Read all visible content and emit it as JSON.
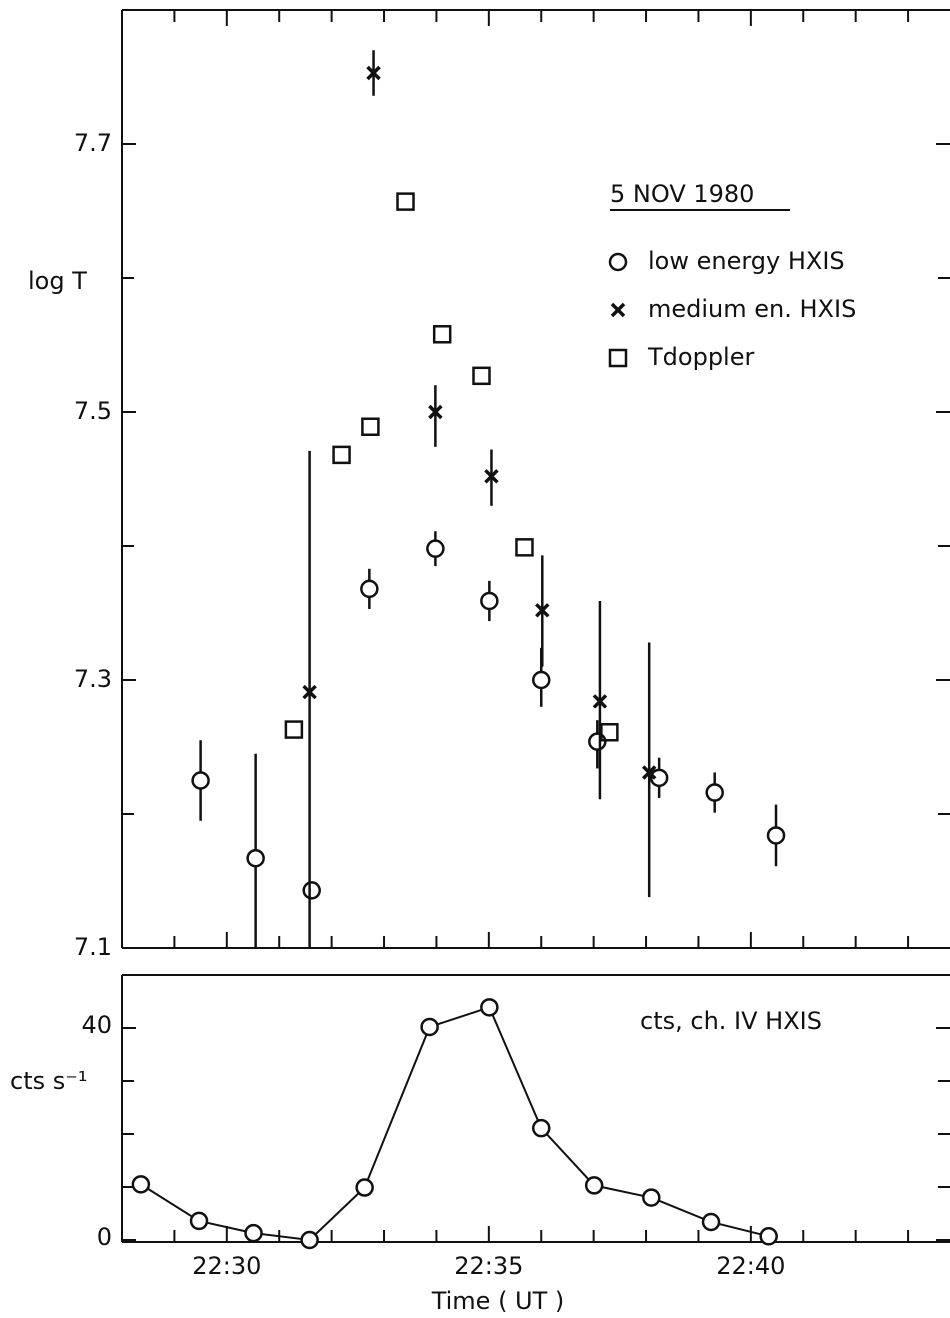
{
  "chart_data": [
    {
      "type": "scatter",
      "title": "5 NOV 1980",
      "y_label": "log T",
      "xlim": [
        28,
        43.8
      ],
      "ylim": [
        7.1,
        7.8
      ],
      "xticks": [
        {
          "value": 30,
          "label": "22:30"
        },
        {
          "value": 35,
          "label": "22:35"
        },
        {
          "value": 40,
          "label": "22:40"
        }
      ],
      "xminor_ticks": [
        29,
        31,
        32,
        33,
        34,
        36,
        37,
        38,
        39,
        41,
        42,
        43
      ],
      "yticks": [
        7.1,
        7.3,
        7.5,
        7.7
      ],
      "yminor_ticks": [
        7.2,
        7.4,
        7.6
      ],
      "legend": "upper right",
      "series": [
        {
          "name": "low energy HXIS",
          "marker": "circle",
          "color": "#111111",
          "x": [
            29.5,
            30.55,
            31.62,
            32.72,
            33.98,
            35.01,
            36.0,
            37.07,
            38.25,
            39.31,
            40.48
          ],
          "values": [
            7.225,
            7.167,
            7.143,
            7.368,
            7.398,
            7.359,
            7.3,
            7.254,
            7.227,
            7.216,
            7.184
          ],
          "error_low": [
            0.03,
            0.067,
            null,
            0.015,
            0.013,
            0.015,
            0.02,
            0.02,
            0.015,
            0.015,
            0.023
          ],
          "error_high": [
            0.03,
            0.078,
            null,
            0.015,
            0.013,
            0.015,
            0.024,
            0.016,
            0.015,
            0.015,
            0.023
          ]
        },
        {
          "name": "medium en. HXIS",
          "marker": "x",
          "color": "#111111",
          "x": [
            31.58,
            32.8,
            33.98,
            35.05,
            36.02,
            37.12,
            38.06
          ],
          "values": [
            7.291,
            7.753,
            7.5,
            7.452,
            7.352,
            7.284,
            7.231
          ],
          "error_low": [
            0.191,
            0.017,
            0.026,
            0.022,
            0.042,
            0.073,
            0.093
          ],
          "error_high": [
            0.18,
            0.017,
            0.02,
            0.02,
            0.041,
            0.075,
            0.097
          ]
        },
        {
          "name": "Tdoppler",
          "marker": "square",
          "color": "#111111",
          "x": [
            31.28,
            32.19,
            32.74,
            33.41,
            34.11,
            34.86,
            35.68,
            37.3
          ],
          "values": [
            7.263,
            7.468,
            7.489,
            7.657,
            7.558,
            7.527,
            7.399,
            7.261
          ]
        }
      ]
    },
    {
      "type": "line",
      "annotation": "cts, ch. IV HXIS",
      "y_label": "cts s⁻¹",
      "x_label": "Time ( UT )",
      "xlim": [
        28,
        43.8
      ],
      "ylim": [
        0,
        50
      ],
      "xticks": [
        {
          "value": 30,
          "label": "22:30"
        },
        {
          "value": 35,
          "label": "22:35"
        },
        {
          "value": 40,
          "label": "22:40"
        }
      ],
      "xminor_ticks": [
        29,
        31,
        32,
        33,
        34,
        36,
        37,
        38,
        39,
        41,
        42,
        43
      ],
      "yticks": [
        0,
        40
      ],
      "yminor_ticks": [
        10,
        20,
        30,
        50
      ],
      "series": [
        {
          "marker": "circle",
          "color": "#111111",
          "x": [
            28.36,
            29.47,
            30.51,
            31.58,
            32.63,
            33.87,
            35.01,
            36.0,
            37.01,
            38.1,
            39.24,
            40.34
          ],
          "values": [
            10.5,
            3.6,
            1.3,
            0,
            9.9,
            40.2,
            43.9,
            21.1,
            10.3,
            8.0,
            3.4,
            0.7
          ]
        }
      ]
    }
  ]
}
